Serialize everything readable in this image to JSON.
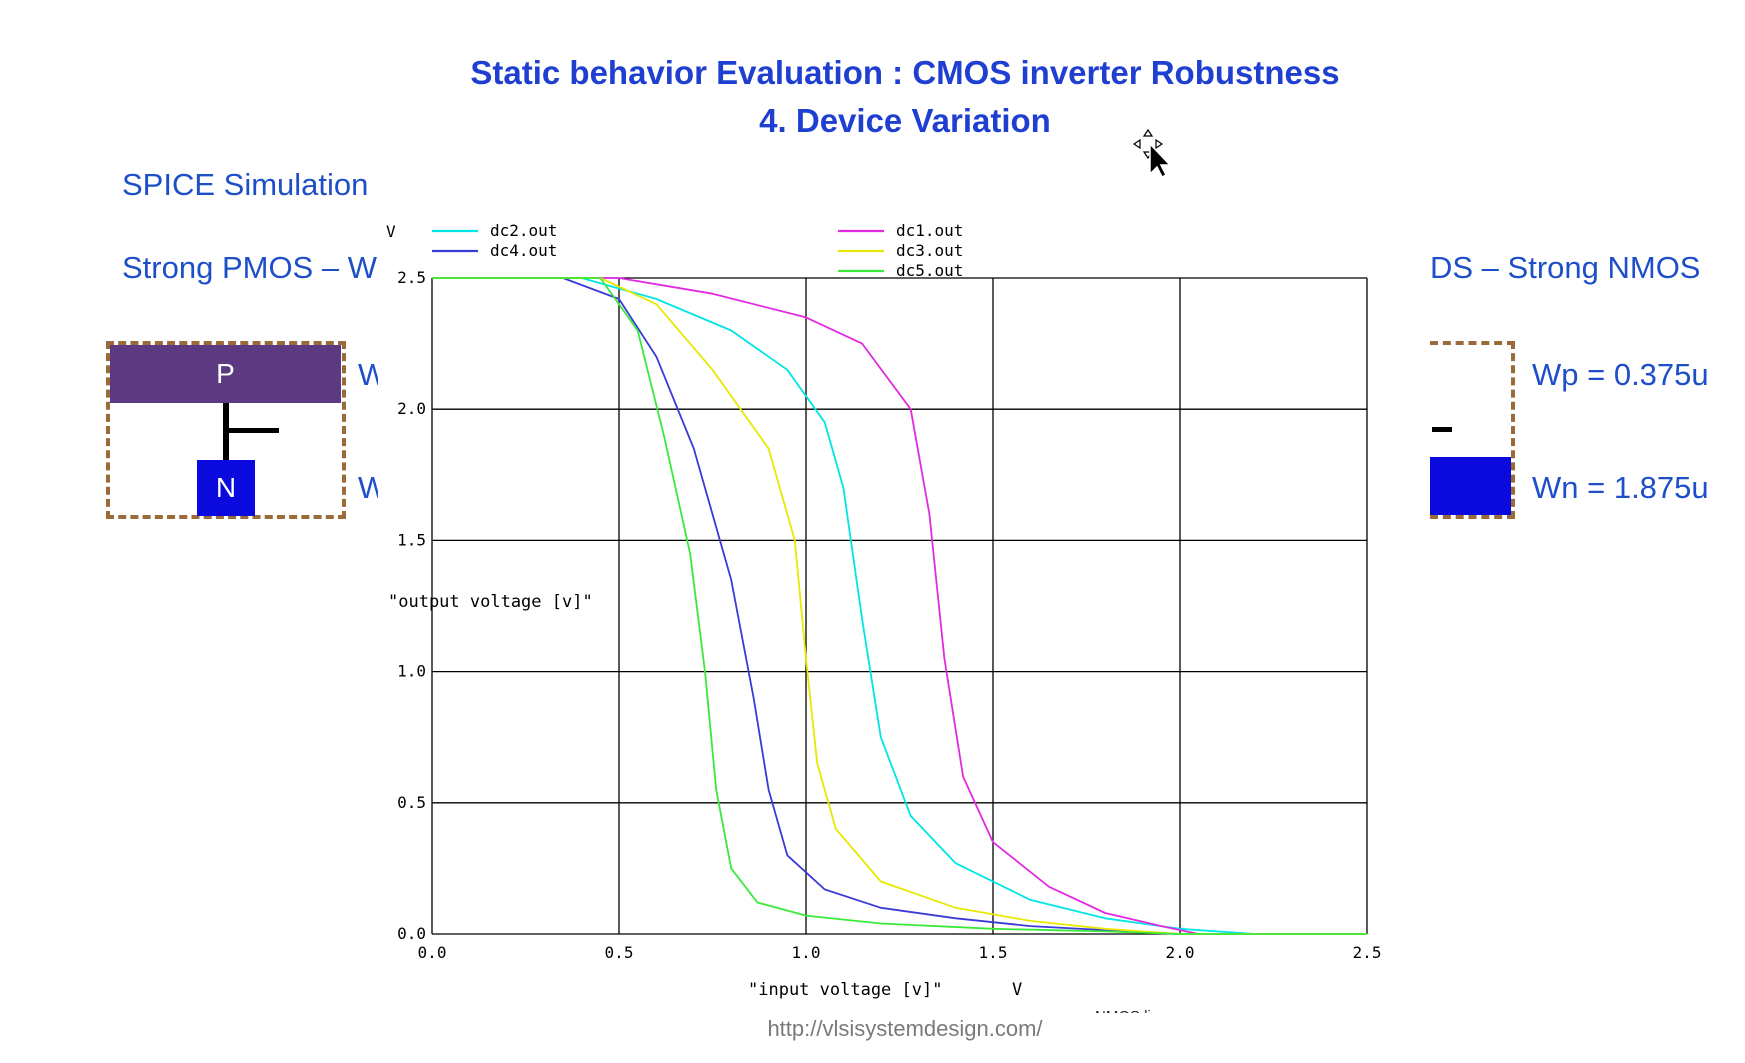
{
  "slide": {
    "title_line1": "Static behavior Evaluation : CMOS inverter Robustness",
    "title_line2": "4. Device Variation",
    "spice_label": "SPICE Simulation",
    "strong_pmos_label": "Strong PMOS – W",
    "strong_nmos_label": "DS – Strong NMOS",
    "left_wp_fragment": "W",
    "left_wn_fragment": "W",
    "p_label": "P",
    "n_label": "N",
    "wp_right": "Wp = 0.375u",
    "wn_right": "Wn = 1.875u",
    "footer_url": "http://vlsisystemdesign.com/",
    "nmos_fragment": "NMOS linear",
    "colors": {
      "title": "#1f3fd1",
      "text": "#1e4fc8",
      "pmos_block": "#5b3a82",
      "nmos_block": "#0a0adf",
      "dash_border": "#9a6a38"
    }
  },
  "chart_data": {
    "type": "line",
    "xlabel": "\"input voltage [v]\"",
    "x_unit": "V",
    "ylabel": "\"output voltage [v]\"",
    "y_unit": "V",
    "xlim": [
      0,
      2.5
    ],
    "ylim": [
      0,
      2.5
    ],
    "xticks": [
      "0.0",
      "0.5",
      "1.0",
      "1.5",
      "2.0",
      "2.5"
    ],
    "yticks": [
      "0.0",
      "0.5",
      "1.0",
      "1.5",
      "2.0",
      "2.5"
    ],
    "grid": true,
    "legend_position": "top",
    "series": [
      {
        "name": "dc2.out",
        "color": "#00e5e5",
        "points": [
          [
            0,
            2.5
          ],
          [
            0.4,
            2.5
          ],
          [
            0.6,
            2.42
          ],
          [
            0.8,
            2.3
          ],
          [
            0.95,
            2.15
          ],
          [
            1.05,
            1.95
          ],
          [
            1.1,
            1.7
          ],
          [
            1.15,
            1.2
          ],
          [
            1.2,
            0.75
          ],
          [
            1.28,
            0.45
          ],
          [
            1.4,
            0.27
          ],
          [
            1.6,
            0.13
          ],
          [
            1.8,
            0.06
          ],
          [
            2.0,
            0.02
          ],
          [
            2.2,
            0.0
          ],
          [
            2.5,
            0.0
          ]
        ]
      },
      {
        "name": "dc4.out",
        "color": "#3a3ad8",
        "points": [
          [
            0,
            2.5
          ],
          [
            0.35,
            2.5
          ],
          [
            0.5,
            2.42
          ],
          [
            0.6,
            2.2
          ],
          [
            0.7,
            1.85
          ],
          [
            0.8,
            1.35
          ],
          [
            0.86,
            0.9
          ],
          [
            0.9,
            0.55
          ],
          [
            0.95,
            0.3
          ],
          [
            1.05,
            0.17
          ],
          [
            1.2,
            0.1
          ],
          [
            1.4,
            0.06
          ],
          [
            1.6,
            0.03
          ],
          [
            1.8,
            0.015
          ],
          [
            2.0,
            0.0
          ],
          [
            2.5,
            0.0
          ]
        ]
      },
      {
        "name": "dc1.out",
        "color": "#e22ae2",
        "points": [
          [
            0,
            2.5
          ],
          [
            0.5,
            2.5
          ],
          [
            0.75,
            2.44
          ],
          [
            1.0,
            2.35
          ],
          [
            1.15,
            2.25
          ],
          [
            1.28,
            2.0
          ],
          [
            1.33,
            1.6
          ],
          [
            1.37,
            1.05
          ],
          [
            1.42,
            0.6
          ],
          [
            1.5,
            0.35
          ],
          [
            1.65,
            0.18
          ],
          [
            1.8,
            0.08
          ],
          [
            1.95,
            0.03
          ],
          [
            2.05,
            0.0
          ],
          [
            2.5,
            0.0
          ]
        ]
      },
      {
        "name": "dc3.out",
        "color": "#e8e800",
        "points": [
          [
            0,
            2.5
          ],
          [
            0.45,
            2.5
          ],
          [
            0.6,
            2.4
          ],
          [
            0.75,
            2.15
          ],
          [
            0.9,
            1.85
          ],
          [
            0.97,
            1.5
          ],
          [
            1.0,
            1.05
          ],
          [
            1.03,
            0.65
          ],
          [
            1.08,
            0.4
          ],
          [
            1.2,
            0.2
          ],
          [
            1.4,
            0.1
          ],
          [
            1.6,
            0.05
          ],
          [
            1.8,
            0.02
          ],
          [
            2.0,
            0.0
          ],
          [
            2.5,
            0.0
          ]
        ]
      },
      {
        "name": "dc5.out",
        "color": "#3aea3a",
        "points": [
          [
            0,
            2.5
          ],
          [
            0.45,
            2.5
          ],
          [
            0.55,
            2.3
          ],
          [
            0.62,
            1.9
          ],
          [
            0.69,
            1.45
          ],
          [
            0.73,
            1.0
          ],
          [
            0.76,
            0.55
          ],
          [
            0.8,
            0.25
          ],
          [
            0.87,
            0.12
          ],
          [
            1.0,
            0.07
          ],
          [
            1.2,
            0.04
          ],
          [
            1.5,
            0.02
          ],
          [
            1.8,
            0.01
          ],
          [
            2.0,
            0.0
          ],
          [
            2.5,
            0.0
          ]
        ]
      }
    ]
  }
}
